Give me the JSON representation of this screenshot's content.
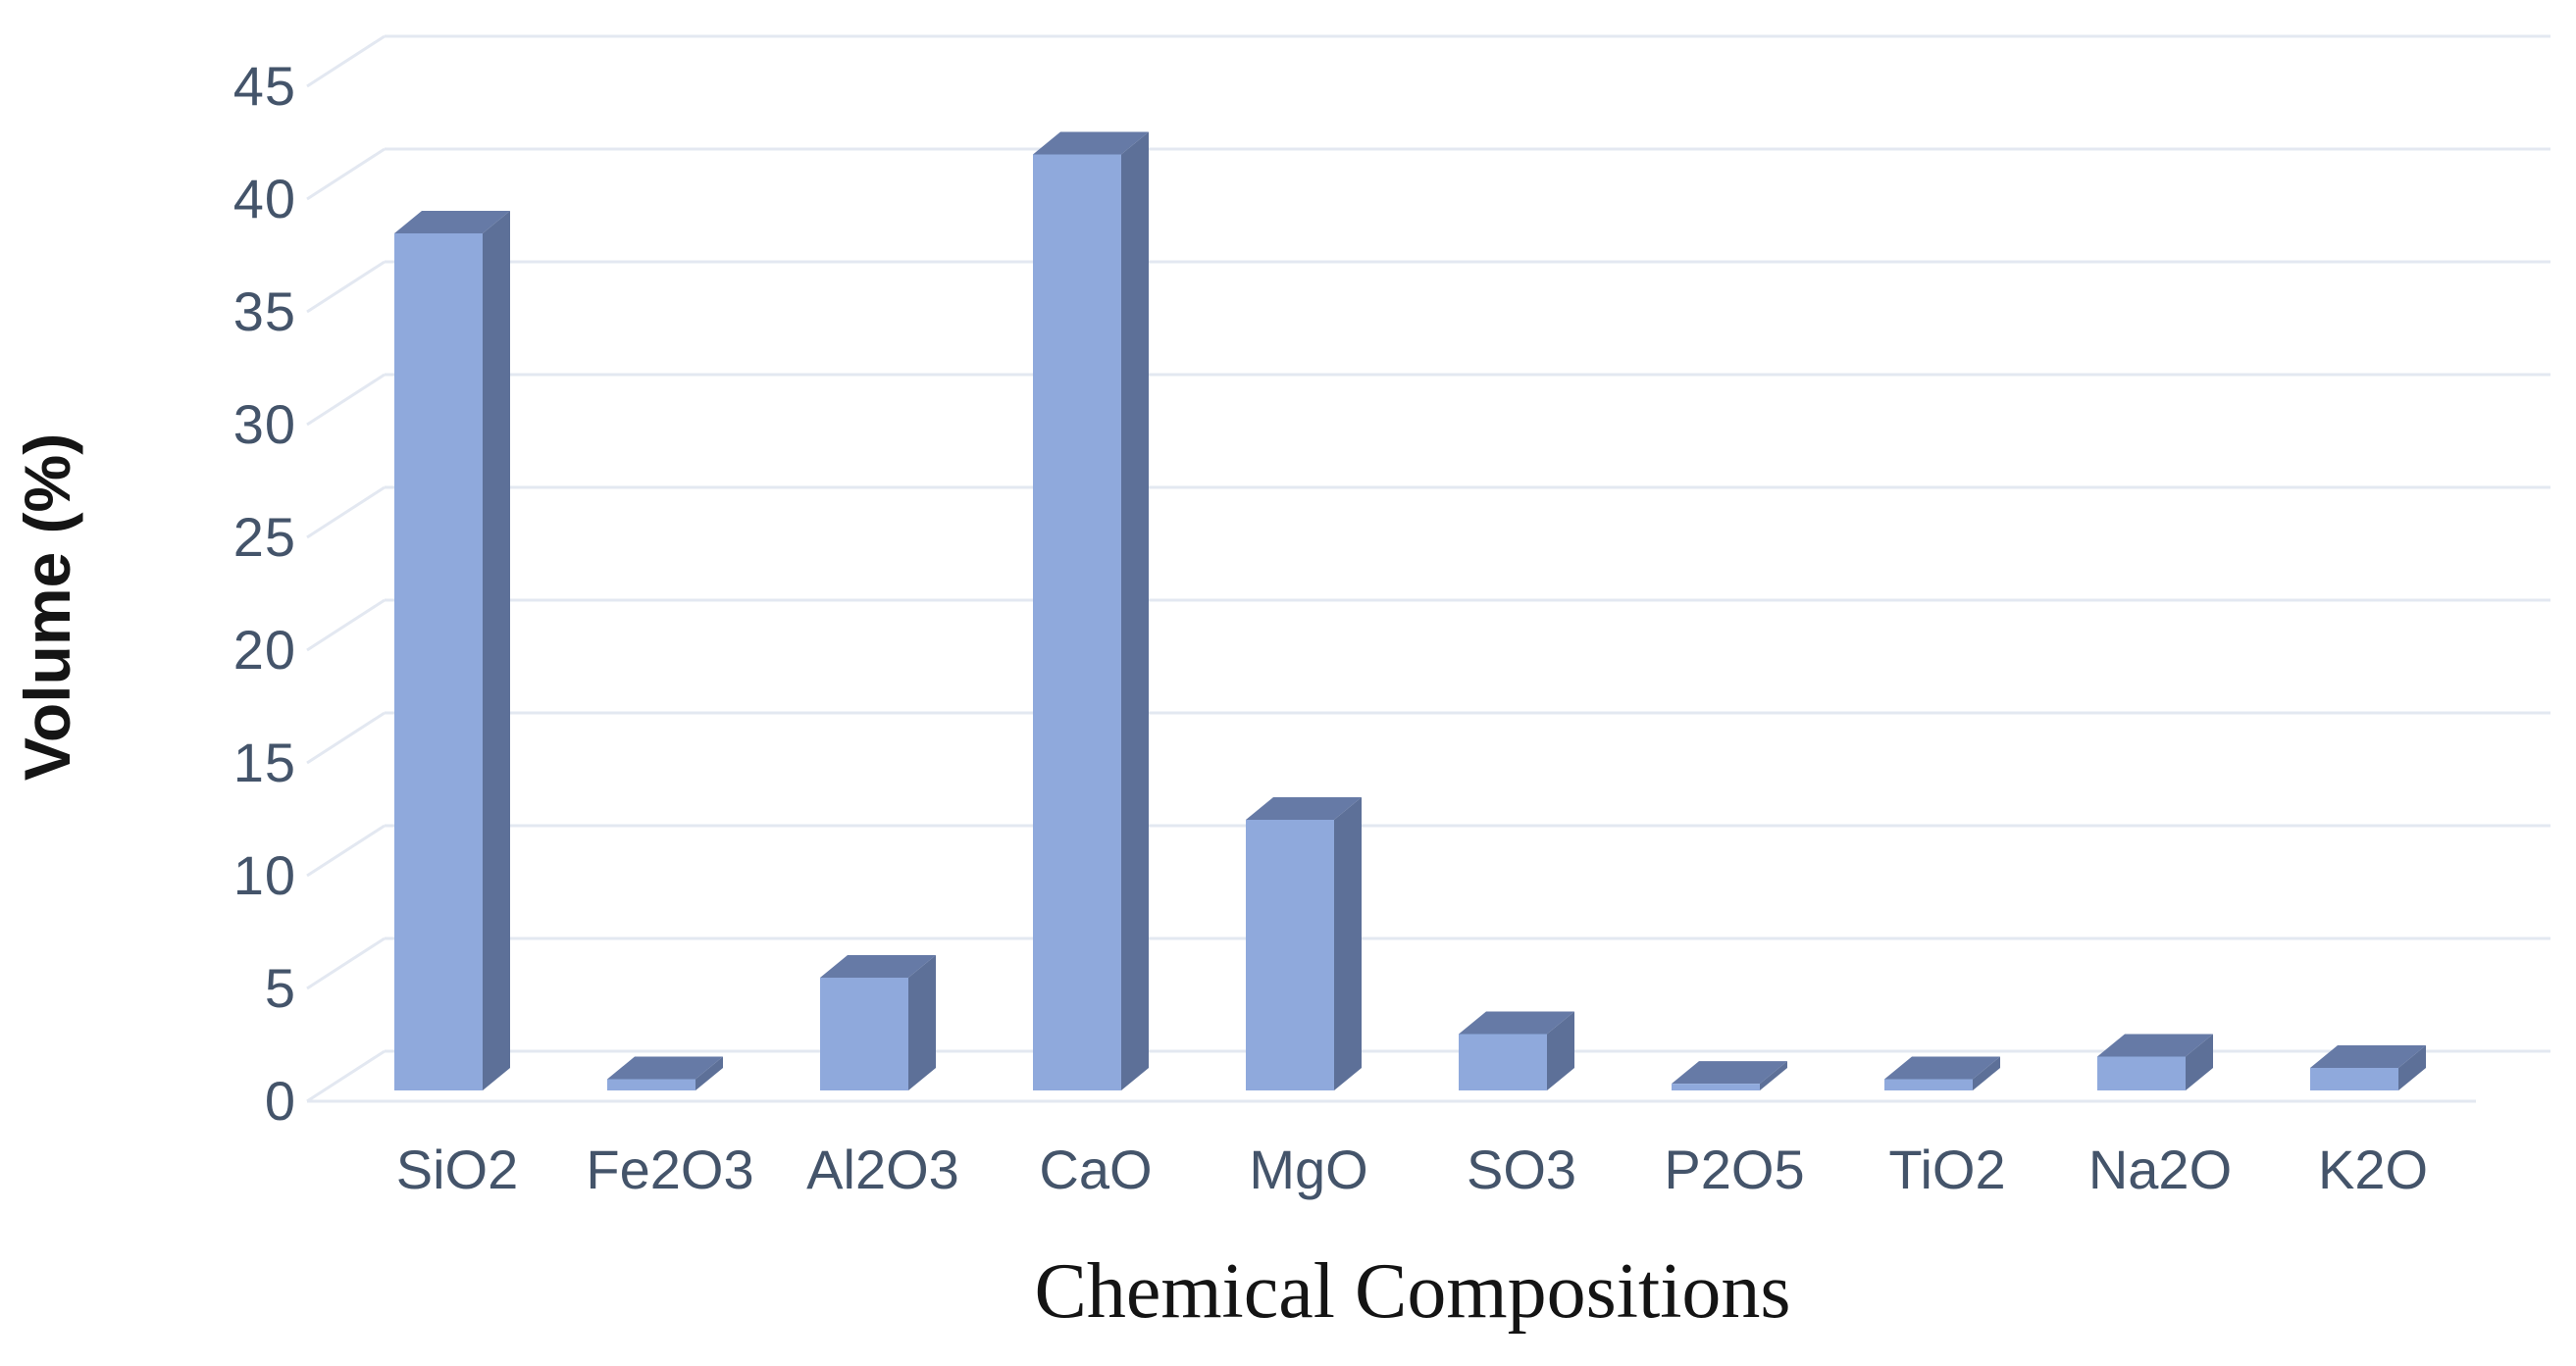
{
  "chart_data": {
    "type": "bar",
    "style": "3d-perspective",
    "title": "",
    "xlabel": "Chemical Compositions",
    "ylabel": "Volume (%)",
    "categories": [
      "SiO2",
      "Fe2O3",
      "Al2O3",
      "CaO",
      "MgO",
      "SO3",
      "P2O5",
      "TiO2",
      "Na2O",
      "K2O"
    ],
    "values": [
      38,
      0.5,
      5,
      41.5,
      12,
      2.5,
      0.3,
      0.5,
      1.5,
      1
    ],
    "series": [
      {
        "name": "Volume (%)",
        "values": [
          38,
          0.5,
          5,
          41.5,
          12,
          2.5,
          0.3,
          0.5,
          1.5,
          1
        ]
      }
    ],
    "ylim": [
      0,
      45
    ],
    "ytick_step": 5,
    "yticks": [
      0,
      5,
      10,
      15,
      20,
      25,
      30,
      35,
      40,
      45
    ],
    "grid": true,
    "legend_position": "none",
    "colors": {
      "bar_front": "#8FA9DC",
      "bar_top": "#667AA6",
      "bar_side": "#5D7098",
      "bar_side_dark": "#4F628A",
      "gridline": "#E3E8F1",
      "tick_label": "#44546A",
      "axis_title": "#141414"
    }
  }
}
